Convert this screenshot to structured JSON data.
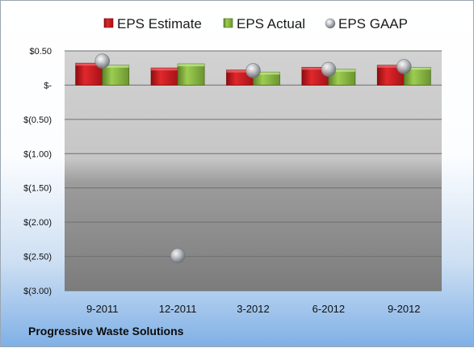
{
  "company": "Progressive Waste Solutions",
  "chart_data": {
    "type": "bar",
    "categories": [
      "9-2011",
      "12-2011",
      "3-2012",
      "6-2012",
      "9-2012"
    ],
    "series": [
      {
        "name": "EPS Estimate",
        "kind": "bar",
        "color": "#c0171c",
        "values": [
          0.32,
          0.25,
          0.22,
          0.26,
          0.29
        ]
      },
      {
        "name": "EPS Actual",
        "kind": "bar",
        "color": "#7ea83a",
        "values": [
          0.29,
          0.31,
          0.19,
          0.23,
          0.26
        ]
      },
      {
        "name": "EPS GAAP",
        "kind": "marker",
        "color": "#9aa0a8",
        "values": [
          0.35,
          -2.49,
          0.21,
          0.23,
          0.27
        ]
      }
    ],
    "ylim": [
      -3.0,
      0.5
    ],
    "yticks": [
      0.5,
      0,
      -0.5,
      -1.0,
      -1.5,
      -2.0,
      -2.5,
      -3.0
    ],
    "ytick_labels": [
      "$0.50",
      "$-",
      "$(0.50)",
      "$(1.00)",
      "$(1.50)",
      "$(2.00)",
      "$(2.50)",
      "$(3.00)"
    ],
    "grid": true,
    "legend_position": "top"
  }
}
